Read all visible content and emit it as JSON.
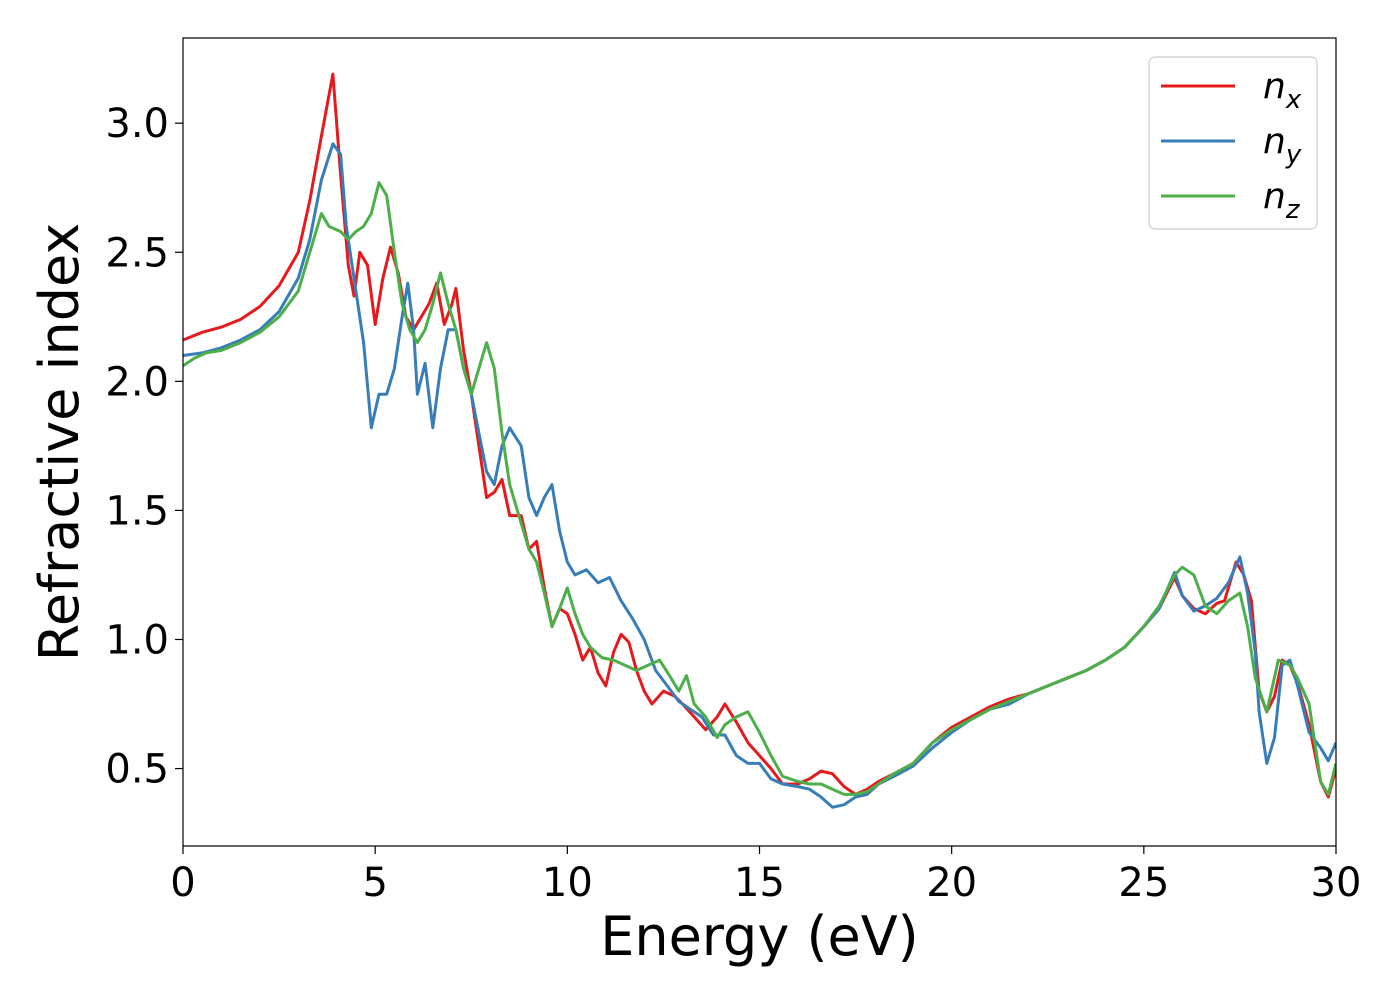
{
  "chart_data": {
    "type": "line",
    "xlabel": "Energy (eV)",
    "ylabel": "Refractive index",
    "xlim": [
      0,
      30
    ],
    "ylim": [
      0.2,
      3.33
    ],
    "xticks": [
      "0",
      "5",
      "10",
      "15",
      "20",
      "25",
      "30"
    ],
    "yticks": [
      "0.5",
      "1.0",
      "1.5",
      "2.0",
      "2.5",
      "3.0"
    ],
    "grid": false,
    "legend_position": "top-right",
    "series": [
      {
        "name": "n",
        "subscript": "x",
        "color": "#e41a1c",
        "points": [
          [
            0,
            2.16
          ],
          [
            0.5,
            2.19
          ],
          [
            1,
            2.21
          ],
          [
            1.5,
            2.24
          ],
          [
            2,
            2.29
          ],
          [
            2.5,
            2.37
          ],
          [
            3,
            2.5
          ],
          [
            3.3,
            2.7
          ],
          [
            3.6,
            2.95
          ],
          [
            3.9,
            3.19
          ],
          [
            4.1,
            2.8
          ],
          [
            4.3,
            2.45
          ],
          [
            4.45,
            2.33
          ],
          [
            4.6,
            2.5
          ],
          [
            4.8,
            2.45
          ],
          [
            5.0,
            2.22
          ],
          [
            5.2,
            2.4
          ],
          [
            5.4,
            2.52
          ],
          [
            5.6,
            2.42
          ],
          [
            5.8,
            2.25
          ],
          [
            6.0,
            2.2
          ],
          [
            6.2,
            2.25
          ],
          [
            6.4,
            2.3
          ],
          [
            6.6,
            2.38
          ],
          [
            6.8,
            2.22
          ],
          [
            7.0,
            2.3
          ],
          [
            7.1,
            2.36
          ],
          [
            7.3,
            2.12
          ],
          [
            7.5,
            1.95
          ],
          [
            7.7,
            1.75
          ],
          [
            7.9,
            1.55
          ],
          [
            8.1,
            1.57
          ],
          [
            8.3,
            1.62
          ],
          [
            8.5,
            1.48
          ],
          [
            8.8,
            1.48
          ],
          [
            9.0,
            1.35
          ],
          [
            9.2,
            1.38
          ],
          [
            9.4,
            1.2
          ],
          [
            9.6,
            1.05
          ],
          [
            9.8,
            1.12
          ],
          [
            10.0,
            1.1
          ],
          [
            10.2,
            1.02
          ],
          [
            10.4,
            0.92
          ],
          [
            10.6,
            0.97
          ],
          [
            10.8,
            0.87
          ],
          [
            11.0,
            0.82
          ],
          [
            11.2,
            0.95
          ],
          [
            11.4,
            1.02
          ],
          [
            11.6,
            0.99
          ],
          [
            11.8,
            0.88
          ],
          [
            12.0,
            0.8
          ],
          [
            12.2,
            0.75
          ],
          [
            12.5,
            0.8
          ],
          [
            12.8,
            0.78
          ],
          [
            13.0,
            0.75
          ],
          [
            13.3,
            0.7
          ],
          [
            13.6,
            0.65
          ],
          [
            13.9,
            0.7
          ],
          [
            14.1,
            0.75
          ],
          [
            14.4,
            0.68
          ],
          [
            14.7,
            0.6
          ],
          [
            15.0,
            0.55
          ],
          [
            15.3,
            0.5
          ],
          [
            15.6,
            0.44
          ],
          [
            16.0,
            0.44
          ],
          [
            16.3,
            0.46
          ],
          [
            16.6,
            0.49
          ],
          [
            16.9,
            0.48
          ],
          [
            17.2,
            0.43
          ],
          [
            17.5,
            0.4
          ],
          [
            17.8,
            0.42
          ],
          [
            18.1,
            0.45
          ],
          [
            18.5,
            0.48
          ],
          [
            19.0,
            0.52
          ],
          [
            19.5,
            0.6
          ],
          [
            20.0,
            0.66
          ],
          [
            20.5,
            0.7
          ],
          [
            21.0,
            0.74
          ],
          [
            21.5,
            0.77
          ],
          [
            22.0,
            0.79
          ],
          [
            22.5,
            0.82
          ],
          [
            23.0,
            0.85
          ],
          [
            23.5,
            0.88
          ],
          [
            24.0,
            0.92
          ],
          [
            24.5,
            0.97
          ],
          [
            25.0,
            1.05
          ],
          [
            25.4,
            1.12
          ],
          [
            25.8,
            1.24
          ],
          [
            26.0,
            1.17
          ],
          [
            26.3,
            1.12
          ],
          [
            26.6,
            1.1
          ],
          [
            26.9,
            1.14
          ],
          [
            27.1,
            1.15
          ],
          [
            27.4,
            1.3
          ],
          [
            27.6,
            1.25
          ],
          [
            27.8,
            1.15
          ],
          [
            28.0,
            0.8
          ],
          [
            28.2,
            0.72
          ],
          [
            28.4,
            0.78
          ],
          [
            28.6,
            0.92
          ],
          [
            28.8,
            0.9
          ],
          [
            29.0,
            0.83
          ],
          [
            29.3,
            0.67
          ],
          [
            29.6,
            0.45
          ],
          [
            29.8,
            0.39
          ],
          [
            30.0,
            0.5
          ]
        ]
      },
      {
        "name": "n",
        "subscript": "y",
        "color": "#377eb8",
        "points": [
          [
            0,
            2.1
          ],
          [
            0.5,
            2.11
          ],
          [
            1,
            2.13
          ],
          [
            1.5,
            2.16
          ],
          [
            2,
            2.2
          ],
          [
            2.5,
            2.27
          ],
          [
            3,
            2.4
          ],
          [
            3.3,
            2.55
          ],
          [
            3.6,
            2.78
          ],
          [
            3.9,
            2.92
          ],
          [
            4.1,
            2.88
          ],
          [
            4.25,
            2.6
          ],
          [
            4.5,
            2.35
          ],
          [
            4.7,
            2.15
          ],
          [
            4.9,
            1.82
          ],
          [
            5.1,
            1.95
          ],
          [
            5.3,
            1.95
          ],
          [
            5.5,
            2.05
          ],
          [
            5.7,
            2.25
          ],
          [
            5.85,
            2.38
          ],
          [
            6.0,
            2.2
          ],
          [
            6.1,
            1.95
          ],
          [
            6.3,
            2.07
          ],
          [
            6.5,
            1.82
          ],
          [
            6.7,
            2.05
          ],
          [
            6.9,
            2.2
          ],
          [
            7.1,
            2.2
          ],
          [
            7.3,
            2.05
          ],
          [
            7.5,
            1.95
          ],
          [
            7.7,
            1.8
          ],
          [
            7.9,
            1.65
          ],
          [
            8.1,
            1.6
          ],
          [
            8.3,
            1.75
          ],
          [
            8.5,
            1.82
          ],
          [
            8.8,
            1.75
          ],
          [
            9.0,
            1.55
          ],
          [
            9.2,
            1.48
          ],
          [
            9.4,
            1.55
          ],
          [
            9.6,
            1.6
          ],
          [
            9.8,
            1.42
          ],
          [
            10.0,
            1.3
          ],
          [
            10.2,
            1.25
          ],
          [
            10.5,
            1.27
          ],
          [
            10.8,
            1.22
          ],
          [
            11.1,
            1.24
          ],
          [
            11.4,
            1.15
          ],
          [
            11.7,
            1.08
          ],
          [
            12.0,
            1.0
          ],
          [
            12.3,
            0.88
          ],
          [
            12.6,
            0.82
          ],
          [
            12.9,
            0.76
          ],
          [
            13.2,
            0.73
          ],
          [
            13.5,
            0.7
          ],
          [
            13.8,
            0.63
          ],
          [
            14.1,
            0.63
          ],
          [
            14.4,
            0.55
          ],
          [
            14.7,
            0.52
          ],
          [
            15.0,
            0.52
          ],
          [
            15.3,
            0.46
          ],
          [
            15.6,
            0.44
          ],
          [
            16.0,
            0.43
          ],
          [
            16.3,
            0.42
          ],
          [
            16.6,
            0.39
          ],
          [
            16.9,
            0.35
          ],
          [
            17.2,
            0.36
          ],
          [
            17.5,
            0.39
          ],
          [
            17.8,
            0.4
          ],
          [
            18.1,
            0.44
          ],
          [
            18.5,
            0.47
          ],
          [
            19.0,
            0.51
          ],
          [
            19.5,
            0.58
          ],
          [
            20.0,
            0.64
          ],
          [
            20.5,
            0.69
          ],
          [
            21.0,
            0.73
          ],
          [
            21.5,
            0.75
          ],
          [
            22.0,
            0.79
          ],
          [
            22.5,
            0.82
          ],
          [
            23.0,
            0.85
          ],
          [
            23.5,
            0.88
          ],
          [
            24.0,
            0.92
          ],
          [
            24.5,
            0.97
          ],
          [
            25.0,
            1.05
          ],
          [
            25.4,
            1.12
          ],
          [
            25.8,
            1.26
          ],
          [
            26.0,
            1.17
          ],
          [
            26.3,
            1.11
          ],
          [
            26.6,
            1.13
          ],
          [
            26.9,
            1.16
          ],
          [
            27.2,
            1.22
          ],
          [
            27.5,
            1.32
          ],
          [
            27.7,
            1.18
          ],
          [
            27.9,
            0.95
          ],
          [
            28.0,
            0.72
          ],
          [
            28.2,
            0.52
          ],
          [
            28.4,
            0.62
          ],
          [
            28.6,
            0.9
          ],
          [
            28.8,
            0.92
          ],
          [
            29.0,
            0.82
          ],
          [
            29.3,
            0.64
          ],
          [
            29.6,
            0.58
          ],
          [
            29.8,
            0.53
          ],
          [
            30.0,
            0.6
          ]
        ]
      },
      {
        "name": "n",
        "subscript": "z",
        "color": "#4daf4a",
        "points": [
          [
            0,
            2.06
          ],
          [
            0.3,
            2.09
          ],
          [
            0.6,
            2.11
          ],
          [
            1,
            2.12
          ],
          [
            1.5,
            2.15
          ],
          [
            2,
            2.19
          ],
          [
            2.5,
            2.25
          ],
          [
            3,
            2.35
          ],
          [
            3.3,
            2.5
          ],
          [
            3.6,
            2.65
          ],
          [
            3.8,
            2.6
          ],
          [
            4.1,
            2.58
          ],
          [
            4.3,
            2.55
          ],
          [
            4.5,
            2.58
          ],
          [
            4.7,
            2.6
          ],
          [
            4.9,
            2.65
          ],
          [
            5.1,
            2.77
          ],
          [
            5.3,
            2.72
          ],
          [
            5.5,
            2.5
          ],
          [
            5.7,
            2.3
          ],
          [
            5.9,
            2.2
          ],
          [
            6.1,
            2.15
          ],
          [
            6.3,
            2.2
          ],
          [
            6.5,
            2.3
          ],
          [
            6.7,
            2.42
          ],
          [
            6.9,
            2.3
          ],
          [
            7.1,
            2.2
          ],
          [
            7.3,
            2.05
          ],
          [
            7.5,
            1.95
          ],
          [
            7.7,
            2.05
          ],
          [
            7.9,
            2.15
          ],
          [
            8.1,
            2.05
          ],
          [
            8.3,
            1.8
          ],
          [
            8.5,
            1.6
          ],
          [
            8.8,
            1.45
          ],
          [
            9.0,
            1.35
          ],
          [
            9.2,
            1.3
          ],
          [
            9.4,
            1.18
          ],
          [
            9.6,
            1.05
          ],
          [
            9.8,
            1.12
          ],
          [
            10.0,
            1.2
          ],
          [
            10.2,
            1.1
          ],
          [
            10.4,
            1.02
          ],
          [
            10.6,
            0.97
          ],
          [
            10.9,
            0.93
          ],
          [
            11.2,
            0.92
          ],
          [
            11.5,
            0.9
          ],
          [
            11.8,
            0.88
          ],
          [
            12.1,
            0.9
          ],
          [
            12.4,
            0.92
          ],
          [
            12.7,
            0.85
          ],
          [
            12.9,
            0.8
          ],
          [
            13.1,
            0.86
          ],
          [
            13.3,
            0.75
          ],
          [
            13.6,
            0.7
          ],
          [
            13.9,
            0.62
          ],
          [
            14.1,
            0.67
          ],
          [
            14.4,
            0.7
          ],
          [
            14.7,
            0.72
          ],
          [
            15.0,
            0.64
          ],
          [
            15.3,
            0.55
          ],
          [
            15.6,
            0.47
          ],
          [
            16.0,
            0.45
          ],
          [
            16.3,
            0.44
          ],
          [
            16.6,
            0.44
          ],
          [
            16.9,
            0.42
          ],
          [
            17.2,
            0.4
          ],
          [
            17.5,
            0.4
          ],
          [
            17.8,
            0.41
          ],
          [
            18.1,
            0.44
          ],
          [
            18.5,
            0.48
          ],
          [
            19.0,
            0.52
          ],
          [
            19.5,
            0.6
          ],
          [
            20.0,
            0.65
          ],
          [
            20.5,
            0.69
          ],
          [
            21.0,
            0.73
          ],
          [
            21.5,
            0.76
          ],
          [
            22.0,
            0.79
          ],
          [
            22.5,
            0.82
          ],
          [
            23.0,
            0.85
          ],
          [
            23.5,
            0.88
          ],
          [
            24.0,
            0.92
          ],
          [
            24.5,
            0.97
          ],
          [
            25.0,
            1.05
          ],
          [
            25.4,
            1.13
          ],
          [
            25.8,
            1.25
          ],
          [
            26.0,
            1.28
          ],
          [
            26.3,
            1.25
          ],
          [
            26.6,
            1.13
          ],
          [
            26.9,
            1.1
          ],
          [
            27.2,
            1.15
          ],
          [
            27.5,
            1.18
          ],
          [
            27.7,
            1.05
          ],
          [
            27.9,
            0.85
          ],
          [
            28.2,
            0.72
          ],
          [
            28.5,
            0.92
          ],
          [
            28.8,
            0.9
          ],
          [
            29.0,
            0.85
          ],
          [
            29.3,
            0.75
          ],
          [
            29.6,
            0.45
          ],
          [
            29.8,
            0.4
          ],
          [
            30.0,
            0.52
          ]
        ]
      }
    ]
  }
}
